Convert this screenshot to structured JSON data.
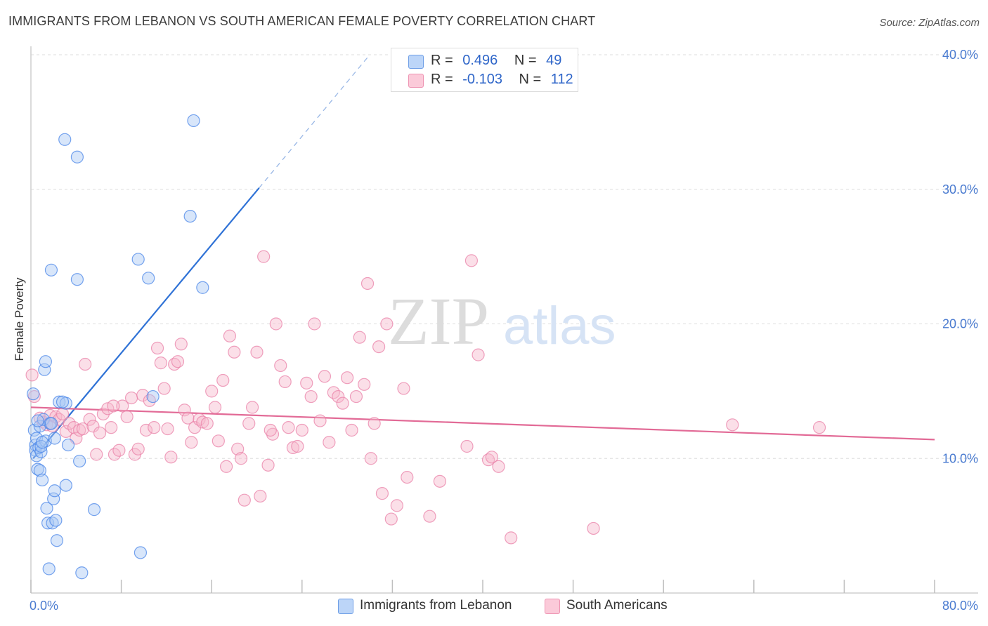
{
  "header": {
    "title": "IMMIGRANTS FROM LEBANON VS SOUTH AMERICAN FEMALE POVERTY CORRELATION CHART",
    "source": "Source: ZipAtlas.com"
  },
  "watermark": {
    "zip": "ZIP",
    "atlas": "atlas"
  },
  "legend": {
    "rows": [
      {
        "r_label": "R =",
        "r_value": "0.496",
        "n_label": "N =",
        "n_value": "49",
        "color": "#a9c8f5"
      },
      {
        "r_label": "R =",
        "r_value": "-0.103",
        "n_label": "N =",
        "n_value": "112",
        "color": "#f6b8cb"
      }
    ]
  },
  "bottom_legend": {
    "items": [
      {
        "label": "Immigrants from Lebanon",
        "color": "#a9c8f5"
      },
      {
        "label": "South Americans",
        "color": "#f6b8cb"
      }
    ]
  },
  "chart_data": {
    "type": "scatter",
    "title": "IMMIGRANTS FROM LEBANON VS SOUTH AMERICAN FEMALE POVERTY CORRELATION CHART",
    "xlabel": "",
    "ylabel": "Female Poverty",
    "xlim": [
      0,
      80
    ],
    "ylim": [
      0,
      40
    ],
    "x_tick_labels": [
      "0.0%",
      "80.0%"
    ],
    "y_ticks": [
      10,
      20,
      30,
      40
    ],
    "y_tick_labels": [
      "10.0%",
      "20.0%",
      "30.0%",
      "40.0%"
    ],
    "grid": true,
    "legend_position": "top-center",
    "series": [
      {
        "name": "Immigrants from Lebanon",
        "color": "#4a86e8",
        "fill": "#a9c8f5",
        "line_color": "#2f72d6",
        "trend": {
          "x0": 0.2,
          "y0": 10.0,
          "x1": 20.2,
          "y1": 30.1,
          "dash_to_x": 30,
          "dash_to_y": 40.0
        },
        "points": [
          [
            0.2,
            14.8
          ],
          [
            0.3,
            12.1
          ],
          [
            0.4,
            11.0
          ],
          [
            0.4,
            10.6
          ],
          [
            0.5,
            11.5
          ],
          [
            0.5,
            10.2
          ],
          [
            0.6,
            9.2
          ],
          [
            0.7,
            10.8
          ],
          [
            0.8,
            12.4
          ],
          [
            0.8,
            9.1
          ],
          [
            0.9,
            10.5
          ],
          [
            1.0,
            8.4
          ],
          [
            1.1,
            12.9
          ],
          [
            1.2,
            16.6
          ],
          [
            1.3,
            17.2
          ],
          [
            1.3,
            11.3
          ],
          [
            1.4,
            6.3
          ],
          [
            1.5,
            5.2
          ],
          [
            1.6,
            1.8
          ],
          [
            1.7,
            12.6
          ],
          [
            1.8,
            24.0
          ],
          [
            1.9,
            5.2
          ],
          [
            2.0,
            7.0
          ],
          [
            2.1,
            7.6
          ],
          [
            2.1,
            11.5
          ],
          [
            2.2,
            5.4
          ],
          [
            2.3,
            3.9
          ],
          [
            2.5,
            14.2
          ],
          [
            3.0,
            33.7
          ],
          [
            3.1,
            14.1
          ],
          [
            3.1,
            8.0
          ],
          [
            3.3,
            11.0
          ],
          [
            4.1,
            32.4
          ],
          [
            4.1,
            23.3
          ],
          [
            4.3,
            9.8
          ],
          [
            4.5,
            1.5
          ],
          [
            5.6,
            6.2
          ],
          [
            9.5,
            24.8
          ],
          [
            9.7,
            3.0
          ],
          [
            10.4,
            23.4
          ],
          [
            10.8,
            14.6
          ],
          [
            14.1,
            28.0
          ],
          [
            14.4,
            35.1
          ],
          [
            15.2,
            22.7
          ],
          [
            0.9,
            10.9
          ],
          [
            1.0,
            11.2
          ],
          [
            0.6,
            12.8
          ],
          [
            1.8,
            12.6
          ],
          [
            2.8,
            14.2
          ]
        ]
      },
      {
        "name": "South Americans",
        "color": "#ea82a8",
        "fill": "#f6b8cb",
        "line_color": "#e26a96",
        "trend": {
          "x0": 0,
          "y0": 13.8,
          "x1": 80,
          "y1": 11.4
        },
        "points": [
          [
            0.1,
            16.2
          ],
          [
            0.3,
            14.6
          ],
          [
            0.8,
            13.0
          ],
          [
            1.1,
            12.7
          ],
          [
            1.4,
            12.5
          ],
          [
            1.7,
            13.2
          ],
          [
            1.9,
            12.4
          ],
          [
            2.2,
            13.1
          ],
          [
            2.5,
            12.9
          ],
          [
            2.8,
            13.3
          ],
          [
            3.1,
            12.0
          ],
          [
            3.4,
            12.6
          ],
          [
            3.8,
            12.3
          ],
          [
            4.0,
            11.5
          ],
          [
            4.3,
            12.1
          ],
          [
            4.6,
            12.2
          ],
          [
            4.8,
            17.0
          ],
          [
            5.2,
            12.9
          ],
          [
            5.5,
            12.4
          ],
          [
            5.8,
            10.3
          ],
          [
            6.1,
            11.9
          ],
          [
            6.4,
            13.3
          ],
          [
            6.8,
            13.7
          ],
          [
            7.1,
            12.3
          ],
          [
            7.4,
            10.3
          ],
          [
            7.8,
            10.6
          ],
          [
            8.1,
            13.9
          ],
          [
            8.5,
            13.1
          ],
          [
            8.9,
            14.5
          ],
          [
            9.2,
            10.3
          ],
          [
            9.5,
            10.7
          ],
          [
            9.9,
            14.7
          ],
          [
            10.2,
            12.1
          ],
          [
            10.5,
            14.3
          ],
          [
            10.9,
            12.3
          ],
          [
            11.2,
            18.2
          ],
          [
            11.5,
            17.1
          ],
          [
            11.8,
            15.2
          ],
          [
            12.1,
            12.2
          ],
          [
            12.4,
            10.1
          ],
          [
            12.7,
            17.0
          ],
          [
            13.0,
            17.2
          ],
          [
            13.3,
            18.5
          ],
          [
            13.6,
            13.6
          ],
          [
            13.9,
            13.0
          ],
          [
            14.2,
            11.2
          ],
          [
            14.5,
            12.3
          ],
          [
            14.9,
            12.9
          ],
          [
            15.2,
            12.7
          ],
          [
            15.6,
            12.6
          ],
          [
            16.0,
            15.0
          ],
          [
            16.3,
            13.8
          ],
          [
            16.6,
            11.3
          ],
          [
            17.0,
            15.8
          ],
          [
            17.3,
            9.4
          ],
          [
            17.6,
            19.1
          ],
          [
            18.0,
            17.9
          ],
          [
            18.3,
            10.7
          ],
          [
            18.6,
            10.0
          ],
          [
            18.9,
            6.9
          ],
          [
            19.3,
            12.6
          ],
          [
            19.6,
            13.8
          ],
          [
            20.0,
            17.9
          ],
          [
            20.3,
            7.2
          ],
          [
            20.6,
            25.0
          ],
          [
            21.0,
            9.5
          ],
          [
            21.4,
            11.8
          ],
          [
            21.7,
            20.0
          ],
          [
            22.1,
            16.9
          ],
          [
            22.5,
            15.7
          ],
          [
            22.8,
            12.3
          ],
          [
            23.2,
            10.8
          ],
          [
            23.6,
            10.9
          ],
          [
            24.0,
            12.1
          ],
          [
            24.4,
            15.6
          ],
          [
            24.8,
            14.6
          ],
          [
            25.1,
            20.0
          ],
          [
            25.6,
            12.8
          ],
          [
            26.0,
            16.1
          ],
          [
            26.4,
            11.2
          ],
          [
            26.8,
            14.9
          ],
          [
            27.2,
            14.6
          ],
          [
            27.6,
            14.1
          ],
          [
            28.0,
            16.0
          ],
          [
            28.4,
            12.1
          ],
          [
            28.8,
            14.6
          ],
          [
            29.1,
            19.0
          ],
          [
            29.5,
            15.5
          ],
          [
            29.8,
            23.0
          ],
          [
            30.1,
            10.0
          ],
          [
            30.4,
            12.6
          ],
          [
            30.8,
            18.3
          ],
          [
            31.1,
            7.4
          ],
          [
            31.5,
            20.0
          ],
          [
            31.9,
            5.5
          ],
          [
            32.4,
            6.5
          ],
          [
            33.0,
            15.2
          ],
          [
            33.3,
            8.6
          ],
          [
            35.3,
            5.7
          ],
          [
            36.2,
            8.3
          ],
          [
            38.6,
            10.9
          ],
          [
            39.0,
            24.7
          ],
          [
            39.6,
            17.7
          ],
          [
            40.5,
            9.9
          ],
          [
            40.8,
            10.1
          ],
          [
            41.4,
            9.4
          ],
          [
            42.5,
            4.1
          ],
          [
            49.8,
            4.8
          ],
          [
            62.1,
            12.5
          ],
          [
            69.8,
            12.3
          ],
          [
            7.3,
            13.9
          ],
          [
            21.2,
            12.1
          ]
        ]
      }
    ]
  }
}
